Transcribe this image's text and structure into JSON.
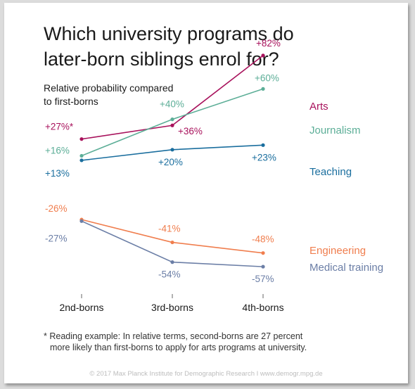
{
  "title_line1": "Which university programs do",
  "title_line2": "later-born siblings enrol for?",
  "subtitle_line1": "Relative probability compared",
  "subtitle_line2": "to first-borns",
  "footnote_line1": "* Reading example: In relative terms, second-borns are 27 percent",
  "footnote_line2": "more likely than first-borns to apply for arts programs at university.",
  "credit": "© 2017 Max Planck Institute for Demographic Research I www.demogr.mpg.de",
  "chart_data": {
    "type": "line",
    "title": "Which university programs do later-born siblings enrol for?",
    "subtitle": "Relative probability compared to first-borns",
    "categories": [
      "2nd-borns",
      "3rd-borns",
      "4th-borns"
    ],
    "ylim": [
      -70,
      100
    ],
    "grid": false,
    "legend": "right, labels at line ends",
    "series": [
      {
        "name": "Arts",
        "color": "#a8125c",
        "values": [
          27,
          36,
          82
        ],
        "labels": [
          "+27%*",
          "+36%",
          "+82%"
        ]
      },
      {
        "name": "Journalism",
        "color": "#5cae97",
        "values": [
          16,
          40,
          60
        ],
        "labels": [
          "+16%",
          "+40%",
          "+60%"
        ]
      },
      {
        "name": "Teaching",
        "color": "#1a6e9e",
        "values": [
          13,
          20,
          23
        ],
        "labels": [
          "+13%",
          "+20%",
          "+23%"
        ]
      },
      {
        "name": "Engineering",
        "color": "#f07e4e",
        "values": [
          -26,
          -41,
          -48
        ],
        "labels": [
          "-26%",
          "-41%",
          "-48%"
        ]
      },
      {
        "name": "Medical training",
        "color": "#6b7ea6",
        "values": [
          -27,
          -54,
          -57
        ],
        "labels": [
          "-27%",
          "-54%",
          "-57%"
        ]
      }
    ]
  }
}
